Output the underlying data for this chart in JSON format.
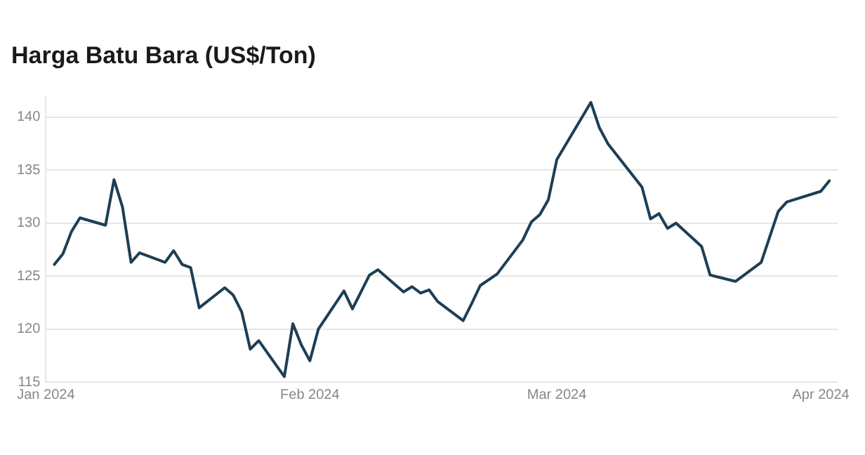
{
  "chart_data": {
    "type": "line",
    "title": "Harga Batu Bara (US$/Ton)",
    "x": [
      "2024-01-02",
      "2024-01-03",
      "2024-01-04",
      "2024-01-05",
      "2024-01-08",
      "2024-01-09",
      "2024-01-10",
      "2024-01-11",
      "2024-01-12",
      "2024-01-15",
      "2024-01-16",
      "2024-01-17",
      "2024-01-18",
      "2024-01-19",
      "2024-01-22",
      "2024-01-23",
      "2024-01-24",
      "2024-01-25",
      "2024-01-26",
      "2024-01-29",
      "2024-01-30",
      "2024-01-31",
      "2024-02-01",
      "2024-02-02",
      "2024-02-05",
      "2024-02-06",
      "2024-02-08",
      "2024-02-09",
      "2024-02-12",
      "2024-02-13",
      "2024-02-14",
      "2024-02-15",
      "2024-02-16",
      "2024-02-19",
      "2024-02-20",
      "2024-02-21",
      "2024-02-23",
      "2024-02-26",
      "2024-02-27",
      "2024-02-28",
      "2024-02-29",
      "2024-03-01",
      "2024-03-05",
      "2024-03-06",
      "2024-03-07",
      "2024-03-11",
      "2024-03-12",
      "2024-03-13",
      "2024-03-14",
      "2024-03-15",
      "2024-03-18",
      "2024-03-19",
      "2024-03-22",
      "2024-03-25",
      "2024-03-27",
      "2024-03-28",
      "2024-04-01",
      "2024-04-02"
    ],
    "series": [
      {
        "color": "#1d3f55",
        "values": [
          126.1,
          127.1,
          129.2,
          130.5,
          129.8,
          134.1,
          131.5,
          126.3,
          127.2,
          126.3,
          127.4,
          126.1,
          125.8,
          122.0,
          123.9,
          123.2,
          121.6,
          118.1,
          118.9,
          115.5,
          120.5,
          118.5,
          117.0,
          120.0,
          123.6,
          121.9,
          125.1,
          125.6,
          123.5,
          124.0,
          123.4,
          123.7,
          122.6,
          120.8,
          122.4,
          124.1,
          125.2,
          128.4,
          130.1,
          130.8,
          132.2,
          136.0,
          141.4,
          139.0,
          137.5,
          133.4,
          130.4,
          130.9,
          129.5,
          130.0,
          127.8,
          125.1,
          124.5,
          126.3,
          131.1,
          132.0,
          133.0,
          134.0
        ]
      }
    ],
    "xlim": [
      "2024-01-01",
      "2024-04-03"
    ],
    "xticks": [
      {
        "value": "2024-01-01",
        "label": "Jan 2024"
      },
      {
        "value": "2024-02-01",
        "label": "Feb 2024"
      },
      {
        "value": "2024-03-01",
        "label": "Mar 2024"
      },
      {
        "value": "2024-04-01",
        "label": "Apr 2024"
      }
    ],
    "ylim": [
      115,
      142
    ],
    "yticks": [
      115,
      120,
      125,
      130,
      135,
      140
    ],
    "grid": "y",
    "legend": false,
    "marker": "none",
    "line_style": "solid"
  }
}
